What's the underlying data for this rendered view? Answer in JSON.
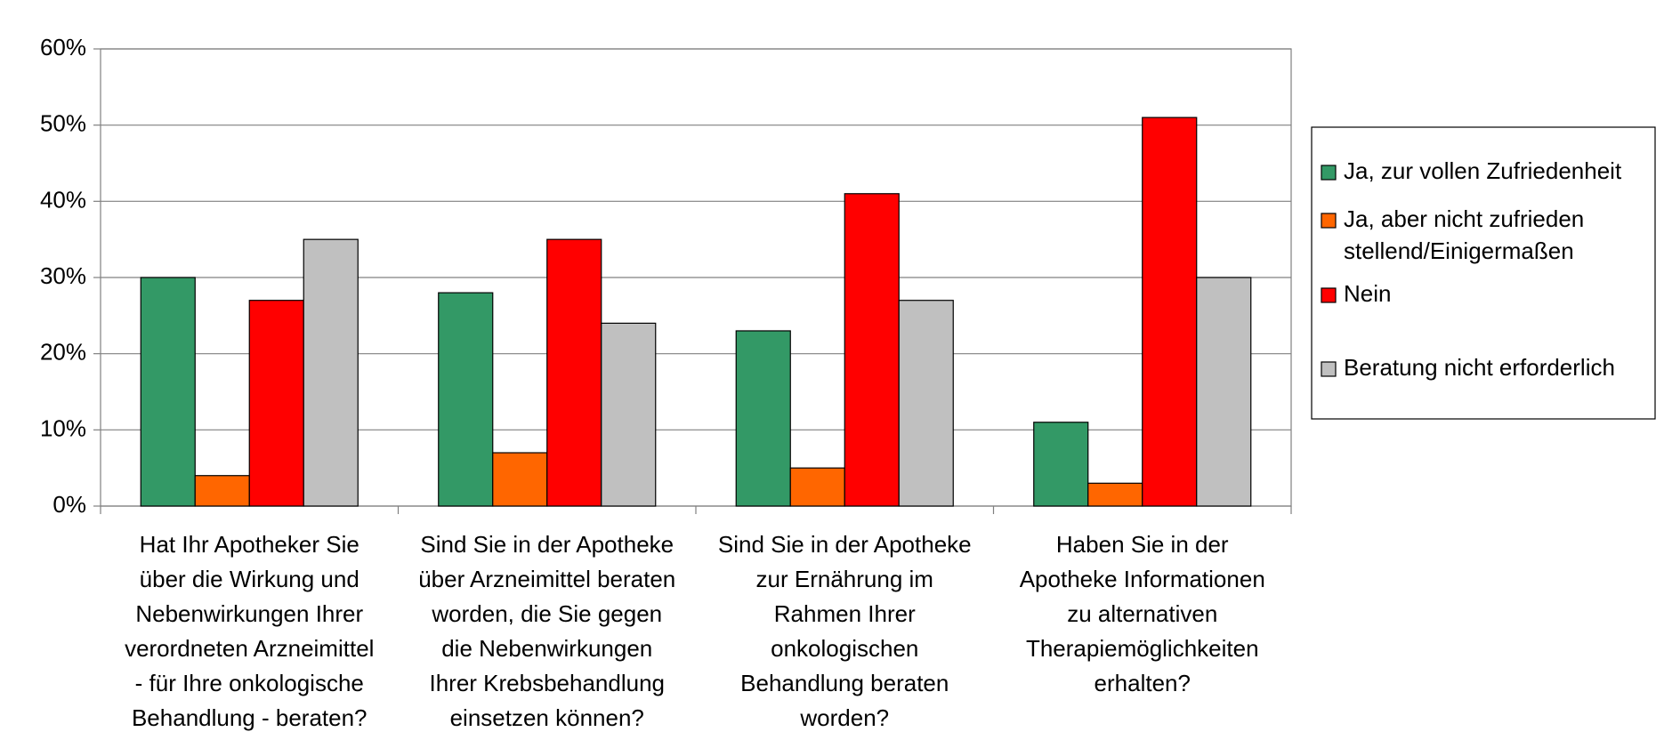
{
  "chart_data": {
    "type": "bar",
    "categories": [
      "Hat Ihr Apotheker Sie\nüber die Wirkung und\nNebenwirkungen Ihrer\nverordneten Arzneimittel\n- für Ihre onkologische\nBehandlung -  beraten?",
      "Sind Sie in der Apotheke\nüber Arzneimittel beraten\nworden, die Sie gegen\ndie Nebenwirkungen\nIhrer Krebsbehandlung\neinsetzen können?",
      "Sind Sie in der Apotheke\nzur Ernährung im\nRahmen Ihrer\nonkologischen\nBehandlung beraten\nworden?",
      "Haben Sie in der\nApotheke Informationen\nzu alternativen\nTherapiemöglichkeiten\nerhalten?"
    ],
    "series": [
      {
        "name": "Ja, zur vollen Zufriedenheit",
        "color": "#339966",
        "values": [
          30,
          28,
          23,
          11
        ]
      },
      {
        "name": "Ja, aber nicht zufrieden\nstellend/Einigermaßen",
        "color": "#ff6600",
        "values": [
          4,
          7,
          5,
          3
        ]
      },
      {
        "name": "Nein",
        "color": "#ff0000",
        "values": [
          27,
          35,
          41,
          51
        ]
      },
      {
        "name": "Beratung nicht erforderlich",
        "color": "#c0c0c0",
        "values": [
          35,
          24,
          27,
          30
        ]
      }
    ],
    "ylim": [
      0,
      60
    ],
    "yticks": [
      {
        "value": 0,
        "label": "0%"
      },
      {
        "value": 10,
        "label": "10%"
      },
      {
        "value": 20,
        "label": "20%"
      },
      {
        "value": 30,
        "label": "30%"
      },
      {
        "value": 40,
        "label": "40%"
      },
      {
        "value": 50,
        "label": "50%"
      },
      {
        "value": 60,
        "label": "60%"
      }
    ],
    "grid": true,
    "legend": "right"
  }
}
